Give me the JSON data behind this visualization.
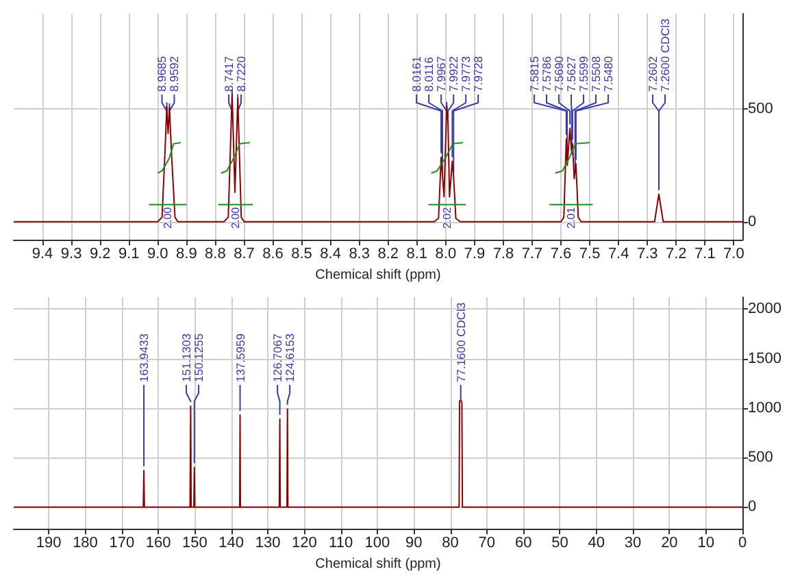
{
  "chart_data": [
    {
      "type": "line",
      "xlabel": "Chemical shift (ppm)",
      "xlim": [
        9.5,
        6.97
      ],
      "ylim": [
        -80,
        920
      ],
      "xticks": [
        9.4,
        9.3,
        9.2,
        9.1,
        {
          "value": 9,
          "label": "9.0"
        },
        8.9,
        8.8,
        8.7,
        8.6,
        8.5,
        8.4,
        8.3,
        8.2,
        8.1,
        {
          "value": 8,
          "label": "8.0"
        },
        7.9,
        7.8,
        7.7,
        7.6,
        7.5,
        7.4,
        7.3,
        7.2,
        7.1,
        {
          "value": 7,
          "label": "7.0"
        }
      ],
      "yticks": [
        0,
        500
      ],
      "grid": true,
      "marker": "none",
      "line_style": "solid",
      "series": [
        {
          "color": "#8b0000",
          "x": [
            9.5,
            9.0,
            8.985,
            8.975,
            8.9685,
            8.964,
            8.9592,
            8.952,
            8.94,
            8.93,
            8.77,
            8.755,
            8.7417,
            8.732,
            8.722,
            8.71,
            8.7,
            8.04,
            8.025,
            8.0161,
            8.006,
            7.9967,
            7.9922,
            7.987,
            7.9773,
            7.9728,
            7.965,
            7.95,
            7.6,
            7.59,
            7.5815,
            7.578,
            7.569,
            7.5627,
            7.5599,
            7.554,
            7.548,
            7.54,
            7.53,
            7.275,
            7.2602,
            7.245,
            6.97
          ],
          "values": [
            0,
            0,
            20,
            300,
            510,
            390,
            505,
            300,
            20,
            0,
            0,
            20,
            565,
            130,
            545,
            20,
            0,
            0,
            15,
            285,
            110,
            512,
            440,
            110,
            267,
            200,
            15,
            0,
            0,
            20,
            366,
            250,
            413,
            300,
            345,
            190,
            256,
            20,
            0,
            0,
            122,
            0,
            0
          ]
        },
        {
          "color": "#228b22",
          "x": [
            9.0,
            8.985,
            8.96,
            8.945,
            8.92
          ],
          "values": [
            215,
            225,
            280,
            345,
            350
          ]
        },
        {
          "color": "#228b22",
          "x": [
            8.78,
            8.76,
            8.735,
            8.715,
            8.68
          ],
          "values": [
            215,
            225,
            285,
            345,
            350
          ]
        },
        {
          "color": "#228b22",
          "x": [
            8.05,
            8.03,
            8.0,
            7.975,
            7.94
          ],
          "values": [
            215,
            225,
            285,
            345,
            350
          ]
        },
        {
          "color": "#228b22",
          "x": [
            7.62,
            7.595,
            7.57,
            7.55,
            7.5
          ],
          "values": [
            215,
            225,
            285,
            345,
            350
          ]
        },
        {
          "color": "#228b22",
          "x": [
            9.03,
            8.9
          ],
          "values": [
            76,
            76
          ]
        },
        {
          "color": "#228b22",
          "x": [
            8.79,
            8.67
          ],
          "values": [
            76,
            76
          ]
        },
        {
          "color": "#228b22",
          "x": [
            8.06,
            7.93
          ],
          "values": [
            76,
            76
          ]
        },
        {
          "color": "#228b22",
          "x": [
            7.64,
            7.49
          ],
          "values": [
            76,
            76
          ]
        }
      ],
      "annotations": [
        {
          "text": "8.9685",
          "x": 8.9685,
          "y": 510
        },
        {
          "text": "8.9592",
          "x": 8.9592,
          "y": 505
        },
        {
          "text": "8.7417",
          "x": 8.7417,
          "y": 565
        },
        {
          "text": "8.7220",
          "x": 8.722,
          "y": 545
        },
        {
          "text": "8.0161",
          "x": 8.0161,
          "y": 285
        },
        {
          "text": "8.0116",
          "x": 8.0116,
          "y": 200
        },
        {
          "text": "7.9967",
          "x": 7.9967,
          "y": 512
        },
        {
          "text": "7.9922",
          "x": 7.9922,
          "y": 440
        },
        {
          "text": "7.9773",
          "x": 7.9773,
          "y": 267
        },
        {
          "text": "7.9728",
          "x": 7.9728,
          "y": 200
        },
        {
          "text": "7.5815",
          "x": 7.5815,
          "y": 366
        },
        {
          "text": "7.5786",
          "x": 7.5786,
          "y": 250
        },
        {
          "text": "7.5690",
          "x": 7.569,
          "y": 413
        },
        {
          "text": "7.5627",
          "x": 7.5627,
          "y": 300
        },
        {
          "text": "7.5599",
          "x": 7.5599,
          "y": 345
        },
        {
          "text": "7.5508",
          "x": 7.5508,
          "y": 200
        },
        {
          "text": "7.5480",
          "x": 7.548,
          "y": 256
        },
        {
          "text": "7.2602",
          "x": 7.2602,
          "y": 122
        },
        {
          "text": "7.2600 CDCl3",
          "x": 7.26,
          "y": 122
        },
        {
          "text": "2.00",
          "x": 8.965,
          "y": 76
        },
        {
          "text": "2.00",
          "x": 8.73,
          "y": 76
        },
        {
          "text": "2.02",
          "x": 7.995,
          "y": 76
        },
        {
          "text": "2.01",
          "x": 7.565,
          "y": 76
        }
      ]
    },
    {
      "type": "line",
      "xlabel": "Chemical shift (ppm)",
      "xlim": [
        199.6,
        0
      ],
      "ylim": [
        -220,
        2120
      ],
      "xticks": [
        190,
        180,
        170,
        160,
        150,
        140,
        130,
        120,
        110,
        100,
        90,
        80,
        70,
        60,
        50,
        40,
        30,
        20,
        10,
        0
      ],
      "yticks": [
        0,
        500,
        1000,
        1500,
        2000
      ],
      "grid": true,
      "marker": "none",
      "line_style": "solid",
      "series": [
        {
          "color": "#8b0000",
          "x": [
            199.6,
            164.1,
            163.9433,
            163.8,
            151.3,
            151.1303,
            151.0,
            150.25,
            150.1255,
            150.0,
            137.7,
            137.5959,
            137.5,
            126.85,
            126.7067,
            126.6,
            124.75,
            124.6153,
            124.5,
            77.6,
            77.48,
            77.16,
            76.84,
            76.7,
            0
          ],
          "values": [
            0,
            0,
            370,
            0,
            0,
            1020,
            0,
            0,
            400,
            0,
            0,
            930,
            0,
            0,
            890,
            0,
            0,
            990,
            0,
            0,
            1070,
            1080,
            1060,
            0,
            0
          ]
        }
      ],
      "annotations": [
        {
          "text": "163.9433",
          "x": 163.9433,
          "y": 370
        },
        {
          "text": "151.1303",
          "x": 151.1303,
          "y": 1020
        },
        {
          "text": "150.1255",
          "x": 150.1255,
          "y": 400
        },
        {
          "text": "137.5959",
          "x": 137.5959,
          "y": 930
        },
        {
          "text": "126.7067",
          "x": 126.7067,
          "y": 890
        },
        {
          "text": "124.6153",
          "x": 124.6153,
          "y": 990
        },
        {
          "text": "77.1600 CDCl3",
          "x": 77.16,
          "y": 1080
        }
      ]
    }
  ]
}
